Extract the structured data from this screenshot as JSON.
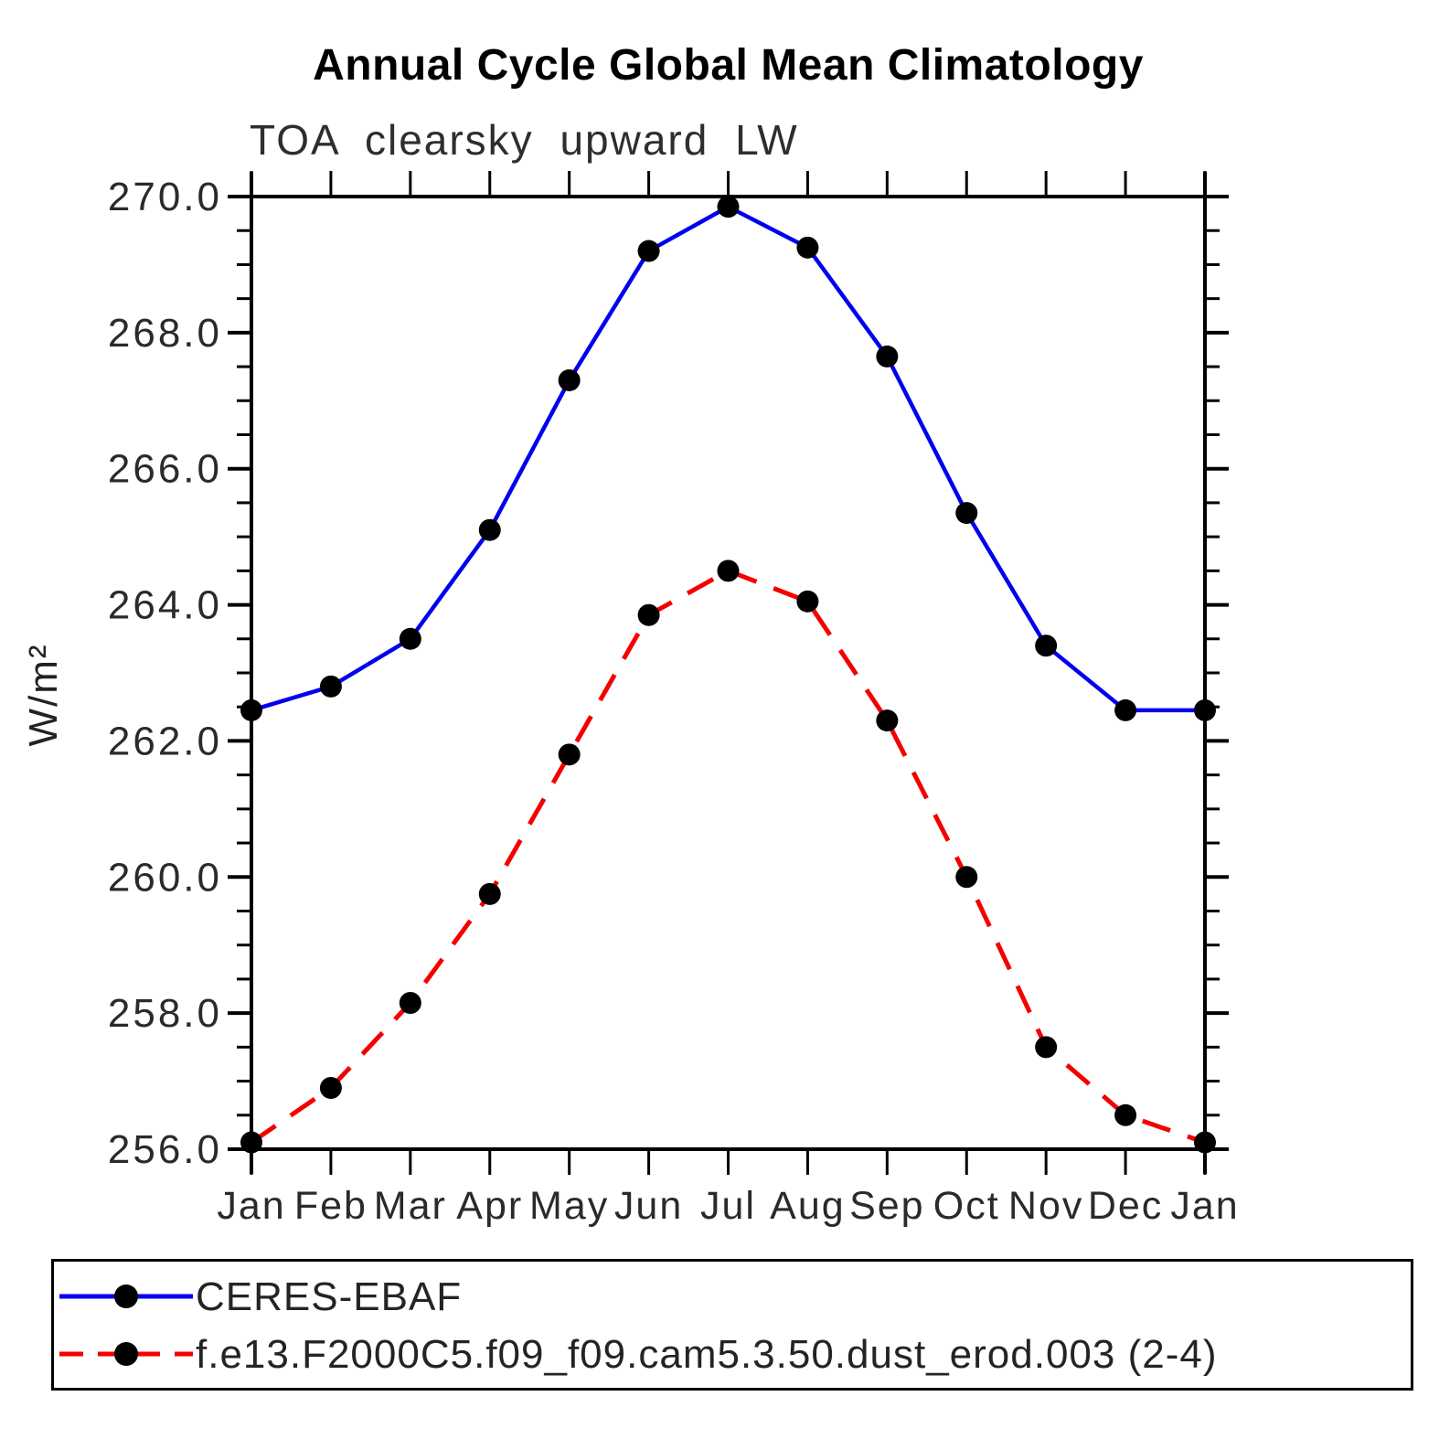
{
  "title": "Annual Cycle Global Mean Climatology",
  "subtitle": "TOA clearsky upward LW",
  "y_axis": {
    "label": "W/m²",
    "tick_labels": [
      "270.0",
      "268.0",
      "266.0",
      "264.0",
      "262.0",
      "260.0",
      "258.0",
      "256.0"
    ],
    "min": 256.0,
    "max": 270.0,
    "major_step": 2.0,
    "minor_step": 0.5
  },
  "x_axis": {
    "labels": [
      "Jan",
      "Feb",
      "Mar",
      "Apr",
      "May",
      "Jun",
      "Jul",
      "Aug",
      "Sep",
      "Oct",
      "Nov",
      "Dec",
      "Jan"
    ]
  },
  "chart_data": {
    "type": "line",
    "categories": [
      "Jan",
      "Feb",
      "Mar",
      "Apr",
      "May",
      "Jun",
      "Jul",
      "Aug",
      "Sep",
      "Oct",
      "Nov",
      "Dec",
      "Jan"
    ],
    "title": "Annual Cycle Global Mean Climatology",
    "subtitle": "TOA clearsky upward LW",
    "ylabel": "W/m²",
    "ylim": [
      256.0,
      270.0
    ],
    "grid": false,
    "legend_position": "bottom",
    "series": [
      {
        "name": "CERES-EBAF",
        "color": "#0000ee",
        "line_style": "solid",
        "line_width": 4.5,
        "marker": "circle",
        "marker_color": "#000000",
        "values": [
          262.45,
          262.8,
          263.5,
          265.1,
          267.3,
          269.2,
          269.85,
          269.25,
          267.65,
          265.35,
          263.4,
          262.45,
          262.45
        ]
      },
      {
        "name": "f.e13.F2000C5.f09_f09.cam5.3.50.dust_erod.003 (2-4)",
        "color": "#f40000",
        "line_style": "dashed",
        "line_width": 5,
        "marker": "circle",
        "marker_color": "#000000",
        "values": [
          256.1,
          256.9,
          258.15,
          259.75,
          261.8,
          263.85,
          264.5,
          264.05,
          262.3,
          260.0,
          257.5,
          256.5,
          256.1
        ]
      }
    ]
  },
  "legend": {
    "entries": [
      {
        "label": "CERES-EBAF",
        "color": "#0000ee",
        "line_style": "solid"
      },
      {
        "label": "f.e13.F2000C5.f09_f09.cam5.3.50.dust_erod.003 (2-4)",
        "color": "#f40000",
        "line_style": "dashed"
      }
    ]
  }
}
